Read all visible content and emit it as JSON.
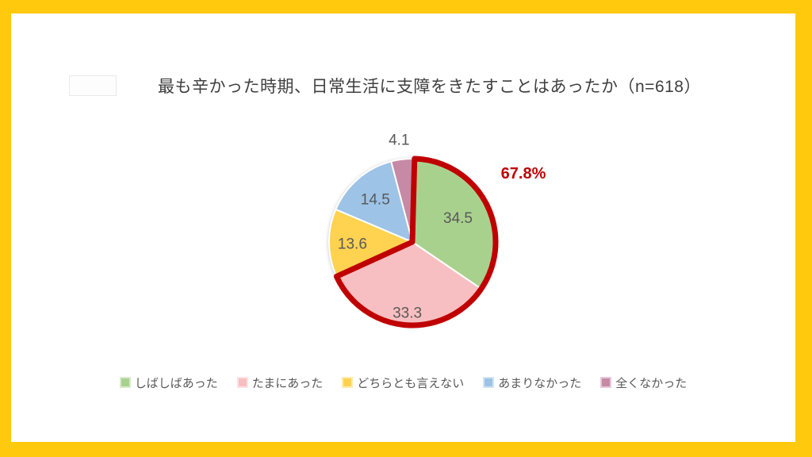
{
  "page": {
    "frame_color": "#ffc90d",
    "content_background": "#ffffff"
  },
  "title": "最も辛かった時期、日常生活に支障をきたすことはあったか（n=618）",
  "chart_data": {
    "type": "pie",
    "title": "最も辛かった時期、日常生活に支障をきたすことはあったか（n=618）",
    "sample_size_label": "n=618",
    "unit": "%",
    "start_angle_deg": 0,
    "direction": "clockwise",
    "slices": [
      {
        "label": "しばしばあった",
        "value": 34.5,
        "color": "#a9d18e",
        "label_radius": 0.62
      },
      {
        "label": "たまにあった",
        "value": 33.3,
        "color": "#f7bfc1",
        "label_radius": 0.85
      },
      {
        "label": "どちらとも言えない",
        "value": 13.6,
        "color": "#ffd24f",
        "label_radius": 0.72
      },
      {
        "label": "あまりなかった",
        "value": 14.5,
        "color": "#9dc3e6",
        "label_radius": 0.68
      },
      {
        "label": "全くなかった",
        "value": 4.1,
        "color": "#c68aa6",
        "label_radius": 1.24
      }
    ],
    "highlight": {
      "label": "67.8%",
      "slice_indexes": [
        0,
        1
      ],
      "color": "#c00000"
    },
    "value_label_color": "#595959",
    "slice_separator_color": "#ffffff",
    "legend_position": "bottom"
  }
}
